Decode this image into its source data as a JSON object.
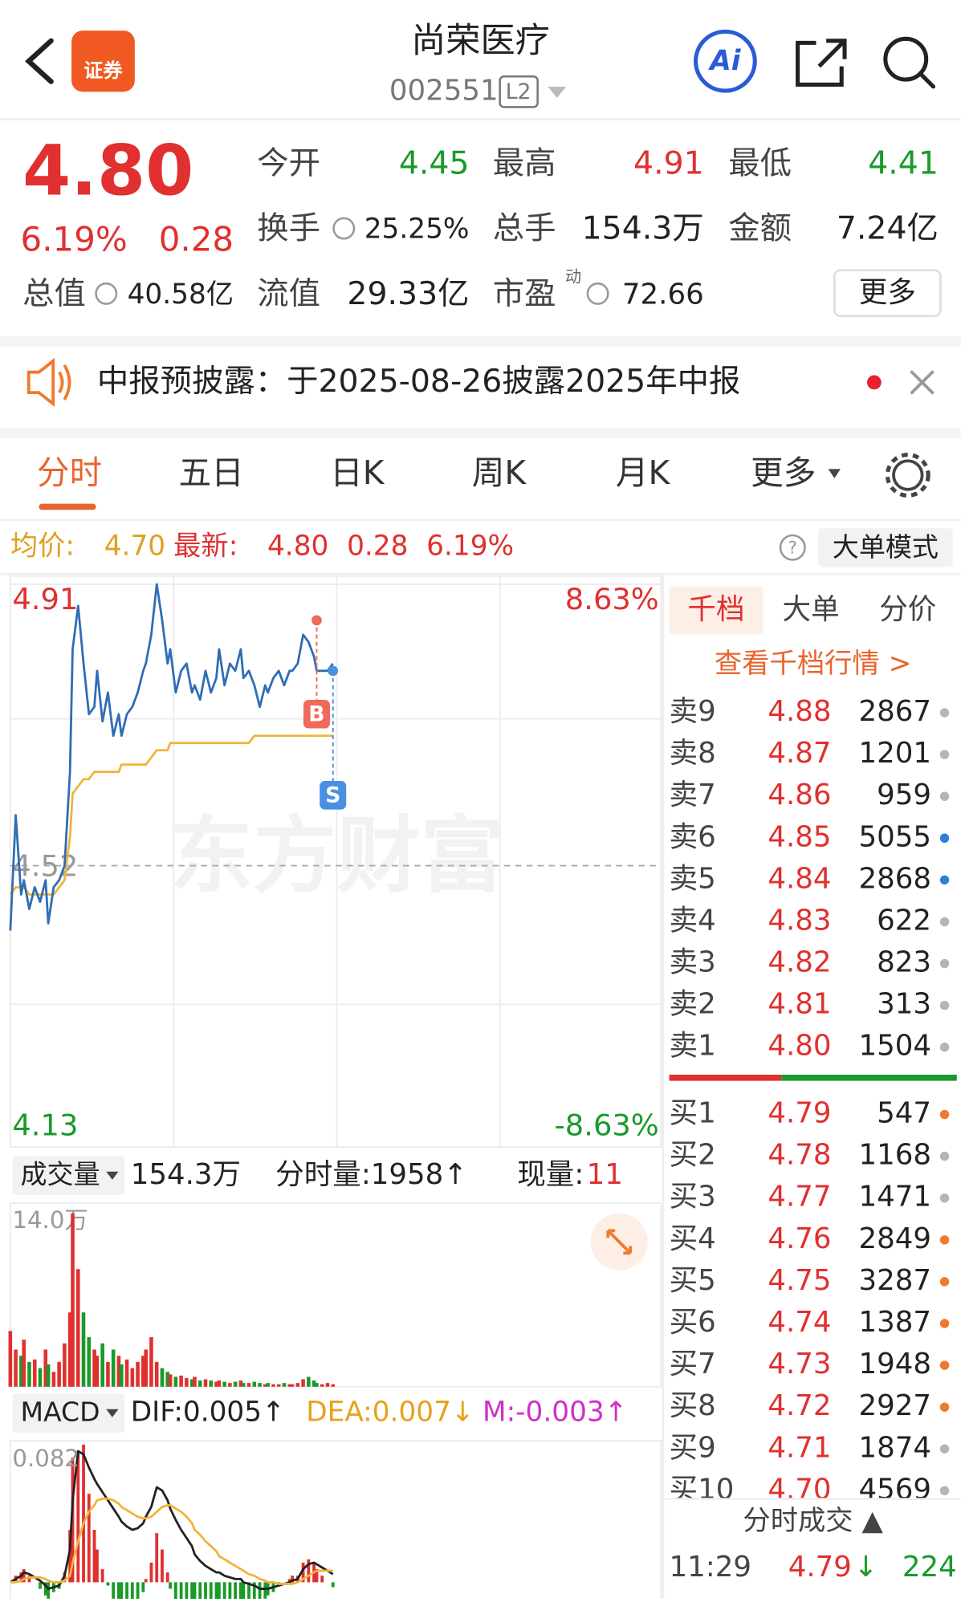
{
  "header": {
    "logo": "证券",
    "title": "尚荣医疗",
    "code": "002551",
    "badge": "L2",
    "ai": "Ai"
  },
  "quote": {
    "price": "4.80",
    "change_pct": "6.19%",
    "change": "0.28",
    "open": {
      "label": "今开",
      "value": "4.45"
    },
    "high": {
      "label": "最高",
      "value": "4.91"
    },
    "low": {
      "label": "最低",
      "value": "4.41"
    },
    "turnover": {
      "label": "换手",
      "value": "25.25%"
    },
    "volume": {
      "label": "总手",
      "value": "154.3万"
    },
    "amount": {
      "label": "金额",
      "value": "7.24亿"
    },
    "market_cap": {
      "label": "总值",
      "value": "40.58亿"
    },
    "float_cap": {
      "label": "流值",
      "value": "29.33亿"
    },
    "pe": {
      "label": "市盈",
      "sup": "动",
      "value": "72.66"
    },
    "more": "更多"
  },
  "notice": {
    "text": "中报预披露：于2025-08-26披露2025年中报"
  },
  "tabs": [
    "分时",
    "五日",
    "日K",
    "周K",
    "月K",
    "更多"
  ],
  "info_bar": {
    "avg_label": "均价:",
    "avg": "4.70",
    "latest_label": "最新:",
    "latest": "4.80",
    "change": "0.28",
    "pct": "6.19%",
    "help": "?",
    "mode": "大单模式"
  },
  "watermark": "东方财富",
  "volume_header": {
    "selector": "成交量",
    "total": "154.3万",
    "minute": "分时量:1958↑",
    "current_label": "现量:",
    "current": "11"
  },
  "macd_header": {
    "selector": "MACD",
    "dif": "DIF:0.005↑",
    "dea": "DEA:0.007↓",
    "m": "M:-0.003↑"
  },
  "chart_data": [
    {
      "type": "line",
      "xlim": [
        0,
        240
      ],
      "ylim": [
        4.13,
        4.91
      ],
      "yticks": [
        4.91,
        4.52,
        4.13
      ],
      "y2lim": [
        -8.63,
        8.63
      ],
      "y2ticks": [
        {
          "value": 8.63,
          "label": "8.63%"
        },
        {
          "value": -8.63,
          "label": "-8.63%"
        }
      ],
      "grid": true,
      "x": [
        0,
        2,
        4,
        5,
        7,
        9,
        11,
        13,
        14,
        16,
        18,
        20,
        22,
        23,
        25,
        27,
        29,
        31,
        32,
        34,
        36,
        38,
        40,
        41,
        43,
        45,
        47,
        49,
        50,
        52,
        54,
        56,
        58,
        59,
        61,
        63,
        65,
        67,
        68,
        70,
        72,
        74,
        76,
        77,
        79,
        81,
        83,
        85,
        86,
        88,
        90,
        92,
        94,
        95,
        97,
        99,
        101,
        103,
        104,
        106,
        108,
        110,
        112,
        113,
        115,
        117,
        119
      ],
      "series": [
        {
          "color": "#2f6db5",
          "values": [
            4.43,
            4.59,
            4.48,
            4.5,
            4.46,
            4.49,
            4.47,
            4.5,
            4.44,
            4.49,
            4.5,
            4.52,
            4.65,
            4.82,
            4.88,
            4.8,
            4.73,
            4.74,
            4.79,
            4.72,
            4.76,
            4.7,
            4.73,
            4.7,
            4.73,
            4.74,
            4.76,
            4.79,
            4.8,
            4.84,
            4.91,
            4.86,
            4.8,
            4.82,
            4.76,
            4.79,
            4.8,
            4.76,
            4.77,
            4.75,
            4.79,
            4.76,
            4.78,
            4.82,
            4.77,
            4.8,
            4.79,
            4.82,
            4.78,
            4.79,
            4.77,
            4.74,
            4.77,
            4.76,
            4.78,
            4.79,
            4.77,
            4.79,
            4.79,
            4.8,
            4.84,
            4.83,
            4.81,
            4.79,
            4.79,
            4.79,
            4.8
          ]
        },
        {
          "color": "#f0b43a",
          "values": [
            4.48,
            4.49,
            4.49,
            4.49,
            4.48,
            4.48,
            4.48,
            4.48,
            4.48,
            4.48,
            4.49,
            4.5,
            4.56,
            4.62,
            4.63,
            4.64,
            4.64,
            4.65,
            4.65,
            4.65,
            4.65,
            4.65,
            4.65,
            4.66,
            4.66,
            4.66,
            4.66,
            4.66,
            4.66,
            4.67,
            4.68,
            4.68,
            4.68,
            4.69,
            4.69,
            4.69,
            4.69,
            4.69,
            4.69,
            4.69,
            4.69,
            4.69,
            4.69,
            4.69,
            4.69,
            4.69,
            4.69,
            4.69,
            4.69,
            4.69,
            4.7,
            4.7,
            4.7,
            4.7,
            4.7,
            4.7,
            4.7,
            4.7,
            4.7,
            4.7,
            4.7,
            4.7,
            4.7,
            4.7,
            4.7,
            4.7,
            4.7
          ]
        }
      ],
      "annotations": [
        {
          "label": "B",
          "x": 113,
          "y": 4.86,
          "color": "#ef6a5a"
        },
        {
          "label": "S",
          "x": 119,
          "y": 4.79,
          "color": "#4a90e2"
        }
      ]
    },
    {
      "type": "bar",
      "xlim": [
        0,
        240
      ],
      "ylim": [
        0,
        140000
      ],
      "yticks": [
        {
          "value": 140000,
          "label": "14.0万"
        }
      ],
      "up_color": "#e0302f",
      "down_color": "#1a9a2a",
      "x": [
        0,
        2,
        4,
        5,
        7,
        9,
        11,
        13,
        14,
        16,
        18,
        20,
        22,
        23,
        25,
        27,
        29,
        31,
        32,
        34,
        36,
        38,
        40,
        41,
        43,
        45,
        47,
        49,
        50,
        52,
        54,
        56,
        58,
        59,
        61,
        63,
        65,
        67,
        68,
        70,
        72,
        74,
        76,
        77,
        79,
        81,
        83,
        85,
        86,
        88,
        90,
        92,
        94,
        95,
        97,
        99,
        101,
        103,
        104,
        106,
        108,
        110,
        112,
        113,
        115,
        117,
        119
      ],
      "values": [
        45000,
        30000,
        25000,
        38000,
        20000,
        22000,
        15000,
        30000,
        18000,
        12000,
        20000,
        35000,
        60000,
        140000,
        95000,
        60000,
        40000,
        30000,
        25000,
        35000,
        20000,
        30000,
        25000,
        18000,
        22000,
        15000,
        20000,
        25000,
        30000,
        40000,
        20000,
        15000,
        12000,
        10000,
        8000,
        9000,
        7000,
        6000,
        8000,
        5000,
        6000,
        5000,
        4000,
        5000,
        4000,
        3000,
        4000,
        5000,
        3000,
        3000,
        4000,
        3000,
        2000,
        3000,
        2000,
        2000,
        3000,
        2000,
        2000,
        3000,
        6000,
        8000,
        5000,
        3000,
        2000,
        3000,
        2000
      ]
    },
    {
      "type": "macd",
      "xlim": [
        0,
        240
      ],
      "ylim": [
        -0.03,
        0.082
      ],
      "yticks": [
        0.082
      ],
      "x": [
        0,
        2,
        4,
        5,
        7,
        9,
        11,
        13,
        14,
        16,
        18,
        20,
        22,
        23,
        25,
        27,
        29,
        31,
        32,
        34,
        36,
        38,
        40,
        41,
        43,
        45,
        47,
        49,
        50,
        52,
        54,
        56,
        58,
        59,
        61,
        63,
        65,
        67,
        68,
        70,
        72,
        74,
        76,
        77,
        79,
        81,
        83,
        85,
        86,
        88,
        90,
        92,
        94,
        95,
        97,
        99,
        101,
        103,
        104,
        106,
        108,
        110,
        112,
        113,
        115,
        117,
        119
      ],
      "series": [
        {
          "color": "#222222",
          "values": [
            0.0,
            0.002,
            0.004,
            0.006,
            0.005,
            0.003,
            0.001,
            -0.002,
            -0.004,
            -0.003,
            -0.002,
            0.004,
            0.02,
            0.05,
            0.08,
            0.078,
            0.07,
            0.063,
            0.06,
            0.055,
            0.05,
            0.045,
            0.04,
            0.037,
            0.034,
            0.032,
            0.033,
            0.036,
            0.04,
            0.046,
            0.058,
            0.056,
            0.05,
            0.045,
            0.038,
            0.032,
            0.027,
            0.022,
            0.017,
            0.013,
            0.01,
            0.008,
            0.006,
            0.006,
            0.004,
            0.003,
            0.002,
            0.002,
            0.0,
            -0.001,
            -0.002,
            -0.004,
            -0.004,
            -0.004,
            -0.003,
            -0.002,
            -0.001,
            0.0,
            0.001,
            0.002,
            0.008,
            0.011,
            0.012,
            0.011,
            0.009,
            0.007,
            0.005
          ]
        },
        {
          "color": "#f0b43a",
          "values": [
            0.0,
            0.0,
            0.001,
            0.002,
            0.003,
            0.003,
            0.003,
            0.002,
            0.001,
            0.0,
            0.0,
            0.001,
            0.004,
            0.012,
            0.025,
            0.036,
            0.043,
            0.047,
            0.05,
            0.051,
            0.051,
            0.05,
            0.048,
            0.046,
            0.044,
            0.042,
            0.04,
            0.039,
            0.039,
            0.04,
            0.043,
            0.046,
            0.047,
            0.047,
            0.045,
            0.043,
            0.04,
            0.036,
            0.032,
            0.029,
            0.025,
            0.022,
            0.019,
            0.016,
            0.014,
            0.012,
            0.01,
            0.008,
            0.007,
            0.005,
            0.004,
            0.002,
            0.001,
            0.0,
            0.0,
            -0.001,
            -0.001,
            -0.001,
            -0.001,
            0.0,
            0.002,
            0.004,
            0.006,
            0.007,
            0.007,
            0.007,
            0.007
          ]
        },
        {
          "style": "bar",
          "up_color": "#e0302f",
          "down_color": "#1a9a2a",
          "values": [
            0,
            0.004,
            0.006,
            0.008,
            0.004,
            0,
            -0.004,
            -0.008,
            -0.01,
            -0.006,
            -0.004,
            0.006,
            0.032,
            0.076,
            0.08,
            0.084,
            0.054,
            0.032,
            0.02,
            0.008,
            -0.002,
            -0.01,
            -0.016,
            -0.018,
            -0.02,
            -0.02,
            -0.014,
            -0.006,
            0.002,
            0.012,
            0.03,
            0.02,
            0.006,
            -0.004,
            -0.014,
            -0.02,
            -0.024,
            -0.026,
            -0.028,
            -0.028,
            -0.026,
            -0.026,
            -0.024,
            -0.02,
            -0.02,
            -0.018,
            -0.016,
            -0.012,
            -0.014,
            -0.012,
            -0.012,
            -0.012,
            -0.01,
            -0.008,
            -0.006,
            -0.002,
            0.0,
            0.002,
            0.004,
            0.004,
            0.012,
            0.014,
            0.012,
            0.008,
            0.004,
            0.0,
            -0.003
          ]
        }
      ]
    }
  ],
  "order_book": {
    "tabs": [
      "千档",
      "大单",
      "分价"
    ],
    "link": "查看千档行情 >",
    "asks": [
      {
        "label": "卖9",
        "price": "4.88",
        "volume": "2867",
        "dot": "#b5b5b5"
      },
      {
        "label": "卖8",
        "price": "4.87",
        "volume": "1201",
        "dot": "#b5b5b5"
      },
      {
        "label": "卖7",
        "price": "4.86",
        "volume": "959",
        "dot": "#b5b5b5"
      },
      {
        "label": "卖6",
        "price": "4.85",
        "volume": "5055",
        "dot": "#2f7fd8"
      },
      {
        "label": "卖5",
        "price": "4.84",
        "volume": "2868",
        "dot": "#2f7fd8"
      },
      {
        "label": "卖4",
        "price": "4.83",
        "volume": "622",
        "dot": "#b5b5b5"
      },
      {
        "label": "卖3",
        "price": "4.82",
        "volume": "823",
        "dot": "#b5b5b5"
      },
      {
        "label": "卖2",
        "price": "4.81",
        "volume": "313",
        "dot": "#b5b5b5"
      },
      {
        "label": "卖1",
        "price": "4.80",
        "volume": "1504",
        "dot": "#b5b5b5"
      }
    ],
    "bids": [
      {
        "label": "买1",
        "price": "4.79",
        "volume": "547",
        "dot": "#f07a2a"
      },
      {
        "label": "买2",
        "price": "4.78",
        "volume": "1168",
        "dot": "#b5b5b5"
      },
      {
        "label": "买3",
        "price": "4.77",
        "volume": "1471",
        "dot": "#b5b5b5"
      },
      {
        "label": "买4",
        "price": "4.76",
        "volume": "2849",
        "dot": "#f07a2a"
      },
      {
        "label": "买5",
        "price": "4.75",
        "volume": "3287",
        "dot": "#f07a2a"
      },
      {
        "label": "买6",
        "price": "4.74",
        "volume": "1387",
        "dot": "#f07a2a"
      },
      {
        "label": "买7",
        "price": "4.73",
        "volume": "1948",
        "dot": "#f07a2a"
      },
      {
        "label": "买8",
        "price": "4.72",
        "volume": "2927",
        "dot": "#f07a2a"
      },
      {
        "label": "买9",
        "price": "4.71",
        "volume": "1874",
        "dot": "#b5b5b5"
      },
      {
        "label": "买10",
        "price": "4.70",
        "volume": "4569",
        "dot": "#b5b5b5"
      }
    ],
    "trades_title": "分时成交 ▲",
    "trade": {
      "time": "11:29",
      "price": "4.79",
      "arrow": "↓",
      "volume": "224"
    }
  }
}
